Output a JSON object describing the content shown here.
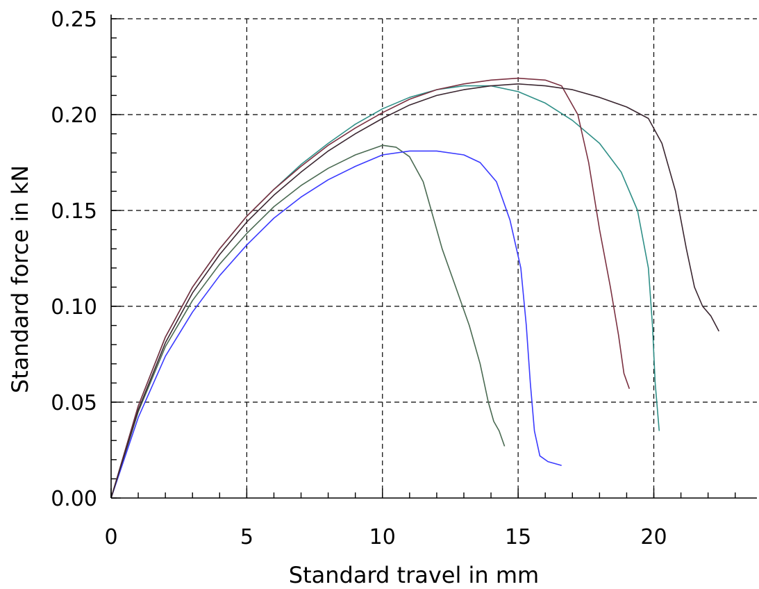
{
  "chart_data": {
    "type": "line",
    "title": "",
    "xlabel": "Standard travel in mm",
    "ylabel": "Standard force in kN",
    "xlim": [
      0,
      23.8
    ],
    "ylim": [
      0,
      0.25
    ],
    "xticks": [
      0,
      5,
      10,
      15,
      20
    ],
    "xtick_labels": [
      "0",
      "5",
      "10",
      "15",
      "20"
    ],
    "yticks": [
      0,
      0.05,
      0.1,
      0.15,
      0.2,
      0.25
    ],
    "ytick_labels": [
      "0.00",
      "0.05",
      "0.10",
      "0.15",
      "0.20",
      "0.25"
    ],
    "x_minor_step": 1,
    "y_minor_step": 0.01,
    "grid": true,
    "series": [
      {
        "color": "#4a6a52",
        "x": [
          0,
          1,
          2,
          3,
          4,
          5,
          6,
          7,
          8,
          9,
          10,
          10.5,
          11,
          11.5,
          11.8,
          12.2,
          12.7,
          13.2,
          13.6,
          13.9,
          14.1,
          14.3,
          14.5
        ],
        "y": [
          0,
          0.045,
          0.079,
          0.103,
          0.122,
          0.138,
          0.152,
          0.163,
          0.172,
          0.179,
          0.184,
          0.183,
          0.178,
          0.165,
          0.15,
          0.13,
          0.11,
          0.09,
          0.07,
          0.05,
          0.04,
          0.035,
          0.027
        ]
      },
      {
        "color": "#3a3aff",
        "x": [
          0,
          1,
          2,
          3,
          4,
          5,
          6,
          7,
          8,
          9,
          10,
          11,
          12,
          13,
          13.6,
          14.2,
          14.7,
          15.1,
          15.3,
          15.45,
          15.6,
          15.8,
          16.1,
          16.6
        ],
        "y": [
          0,
          0.042,
          0.074,
          0.097,
          0.116,
          0.132,
          0.146,
          0.157,
          0.166,
          0.173,
          0.179,
          0.181,
          0.181,
          0.179,
          0.175,
          0.165,
          0.145,
          0.12,
          0.09,
          0.06,
          0.035,
          0.022,
          0.019,
          0.017
        ]
      },
      {
        "color": "#2f8f87",
        "x": [
          0,
          1,
          2,
          3,
          4,
          5,
          6,
          7,
          8,
          9,
          10,
          11,
          12,
          13,
          14,
          15,
          16,
          17,
          18,
          18.8,
          19.4,
          19.8,
          19.95,
          20.05,
          20.2
        ],
        "y": [
          0,
          0.048,
          0.084,
          0.11,
          0.13,
          0.147,
          0.161,
          0.174,
          0.185,
          0.195,
          0.203,
          0.209,
          0.213,
          0.215,
          0.215,
          0.212,
          0.206,
          0.197,
          0.185,
          0.17,
          0.15,
          0.12,
          0.09,
          0.06,
          0.035
        ]
      },
      {
        "color": "#7a3040",
        "x": [
          0,
          1,
          2,
          3,
          4,
          5,
          6,
          7,
          8,
          9,
          10,
          11,
          12,
          13,
          14,
          15,
          16,
          16.6,
          17.2,
          17.6,
          18,
          18.4,
          18.7,
          18.9,
          19.1
        ],
        "y": [
          0,
          0.048,
          0.084,
          0.11,
          0.13,
          0.147,
          0.161,
          0.173,
          0.184,
          0.193,
          0.201,
          0.208,
          0.213,
          0.216,
          0.218,
          0.219,
          0.218,
          0.215,
          0.2,
          0.175,
          0.14,
          0.11,
          0.085,
          0.065,
          0.057
        ]
      },
      {
        "color": "#3a2630",
        "x": [
          0,
          1,
          2,
          3,
          4,
          5,
          6,
          7,
          8,
          9,
          10,
          11,
          12,
          13,
          14,
          15,
          16,
          17,
          18,
          19,
          19.8,
          20.3,
          20.8,
          21.2,
          21.5,
          21.8,
          22.1,
          22.4
        ],
        "y": [
          0,
          0.046,
          0.081,
          0.107,
          0.127,
          0.144,
          0.158,
          0.17,
          0.181,
          0.19,
          0.198,
          0.205,
          0.21,
          0.213,
          0.215,
          0.216,
          0.215,
          0.213,
          0.209,
          0.204,
          0.198,
          0.185,
          0.16,
          0.13,
          0.11,
          0.1,
          0.095,
          0.087
        ]
      }
    ]
  }
}
